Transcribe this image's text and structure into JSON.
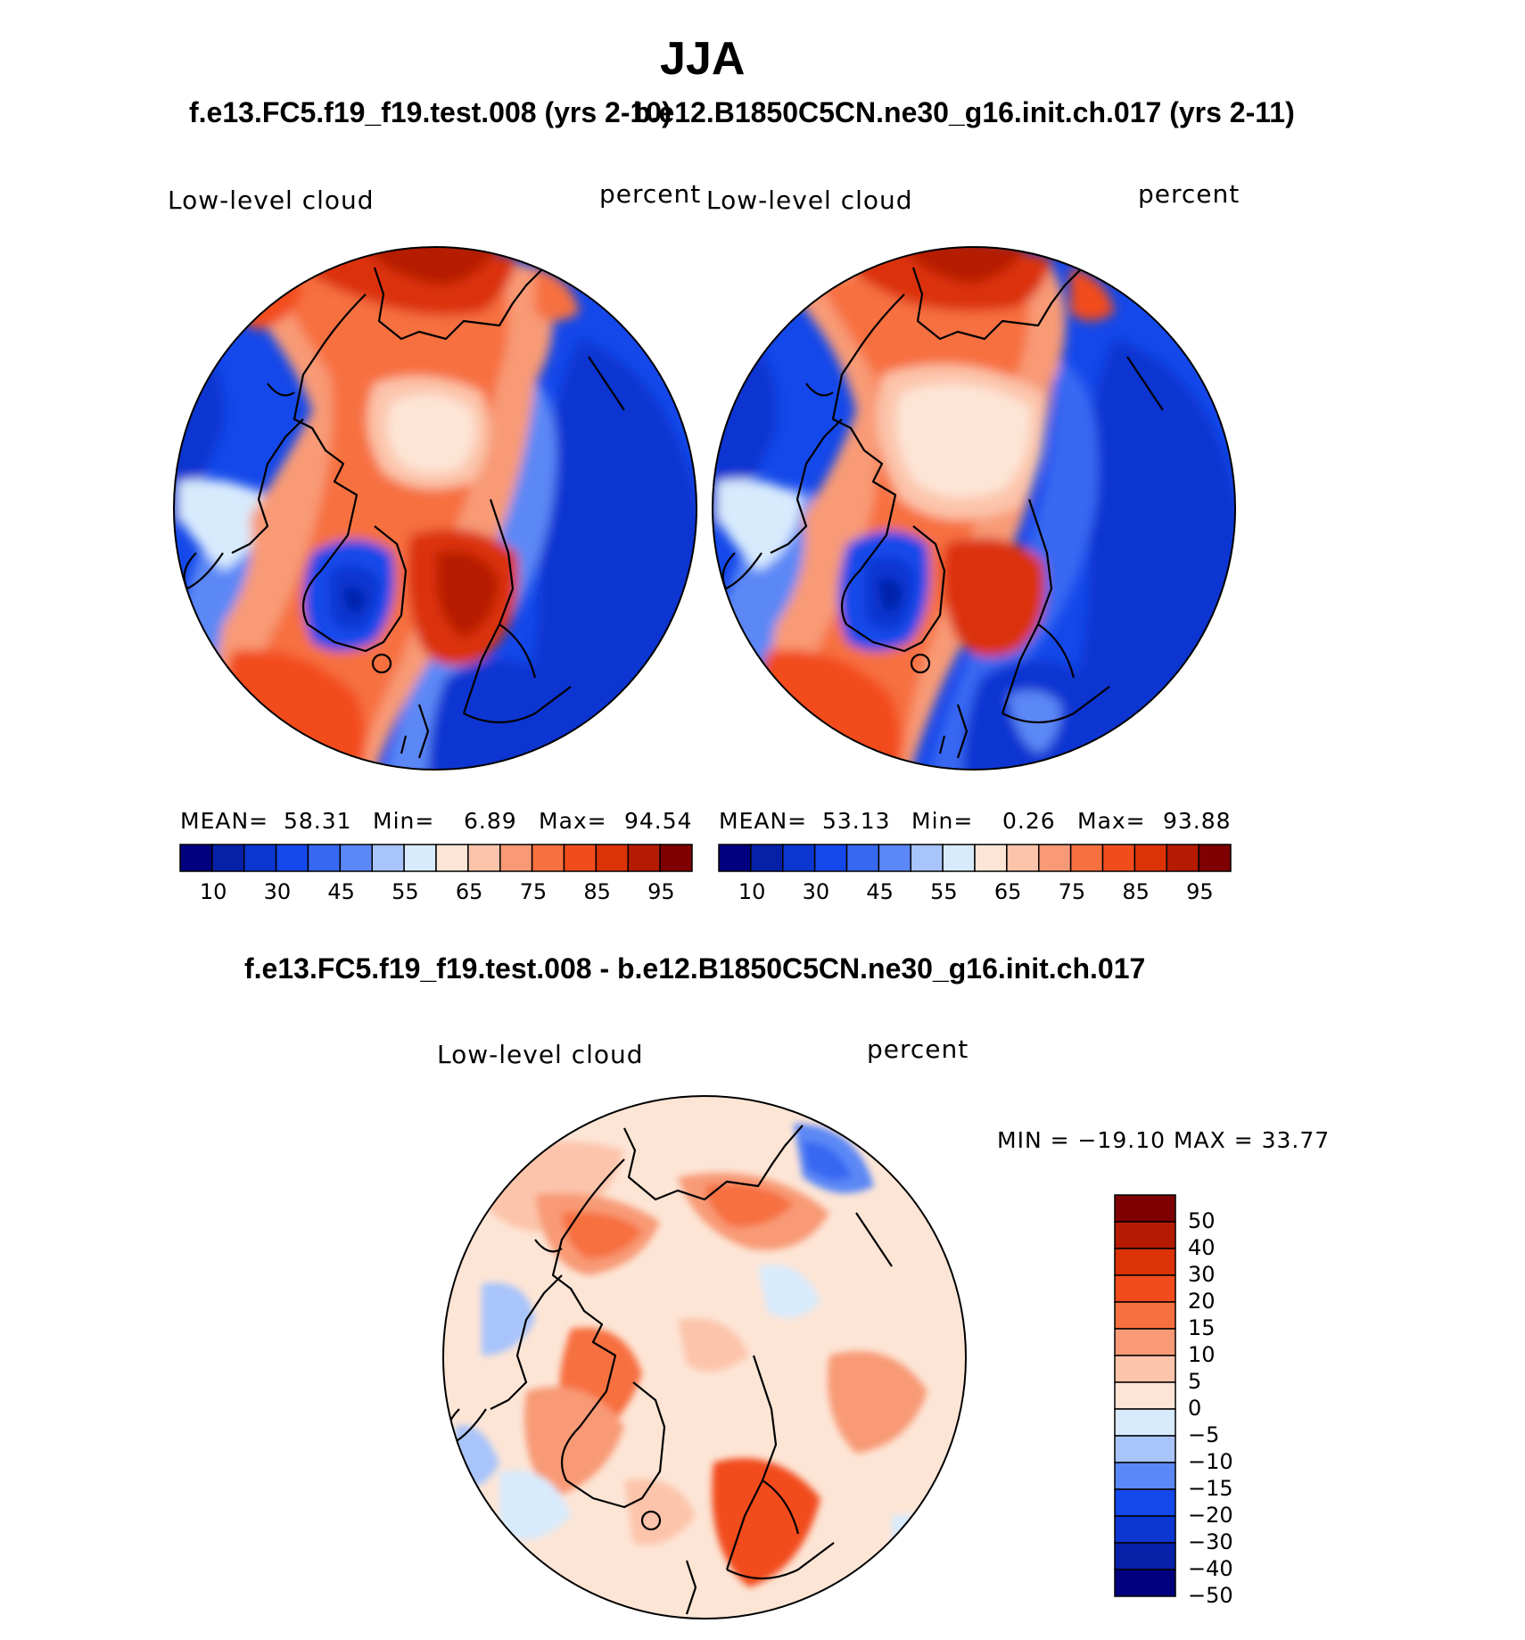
{
  "figure": {
    "title": "JJA",
    "subtitle_left": "f.e13.FC5.f19_f19.test.008 (yrs 2-10)",
    "subtitle_right": "b.e12.B1850C5CN.ne30_g16.init.ch.017 (yrs 2-11)",
    "diff_title": "f.e13.FC5.f19_f19.test.008 - b.e12.B1850C5CN.ne30_g16.init.ch.017"
  },
  "colors": {
    "sequential": [
      "#00007f",
      "#0620a8",
      "#0b36d1",
      "#1448ea",
      "#3768f2",
      "#5b88f6",
      "#a8c4fb",
      "#d8ebfd",
      "#fde5d6",
      "#fcc4aa",
      "#f89a76",
      "#f7703f",
      "#f24c1c",
      "#db3208",
      "#b51b02",
      "#7e0002"
    ],
    "diverging": [
      "#00007f",
      "#0620a8",
      "#0b36d1",
      "#1448ea",
      "#5b88f6",
      "#a8c4fb",
      "#d8ebfd",
      "#fde5d6",
      "#fcc4aa",
      "#f89a76",
      "#f7703f",
      "#f24c1c",
      "#db3208",
      "#b51b02",
      "#7e0002"
    ],
    "coast": "#000000"
  },
  "chart_data": [
    {
      "type": "heatmap",
      "title": "f.e13.FC5.f19_f19.test.008 (yrs 2-10)",
      "variable": "Low-level cloud",
      "units": "percent",
      "projection": "north polar stereographic",
      "mean_label": "MEAN=",
      "mean": "58.31",
      "min_label": "Min=",
      "min": "6.89",
      "max_label": "Max=",
      "max": "94.54",
      "contour_levels": [
        10,
        20,
        30,
        40,
        45,
        50,
        55,
        60,
        65,
        70,
        75,
        80,
        85,
        90,
        95
      ],
      "tick_labels": [
        "10",
        "30",
        "45",
        "55",
        "65",
        "75",
        "85",
        "95"
      ]
    },
    {
      "type": "heatmap",
      "title": "b.e12.B1850C5CN.ne30_g16.init.ch.017 (yrs 2-11)",
      "variable": "Low-level cloud",
      "units": "percent",
      "projection": "north polar stereographic",
      "mean_label": "MEAN=",
      "mean": "53.13",
      "min_label": "Min=",
      "min": "0.26",
      "max_label": "Max=",
      "max": "93.88",
      "contour_levels": [
        10,
        20,
        30,
        40,
        45,
        50,
        55,
        60,
        65,
        70,
        75,
        80,
        85,
        90,
        95
      ],
      "tick_labels": [
        "10",
        "30",
        "45",
        "55",
        "65",
        "75",
        "85",
        "95"
      ]
    },
    {
      "type": "heatmap",
      "title": "f.e13.FC5.f19_f19.test.008 - b.e12.B1850C5CN.ne30_g16.init.ch.017",
      "variable": "Low-level cloud",
      "units": "percent",
      "projection": "north polar stereographic",
      "minmax_label": "MIN = −19.10 MAX =   33.77",
      "min": -19.1,
      "max": 33.77,
      "contour_levels": [
        -50,
        -40,
        -30,
        -20,
        -15,
        -10,
        -5,
        0,
        5,
        10,
        15,
        20,
        30,
        40,
        50
      ],
      "tick_labels": [
        "50",
        "40",
        "30",
        "20",
        "15",
        "10",
        "5",
        "0",
        "−5",
        "−10",
        "−15",
        "−20",
        "−30",
        "−40",
        "−50"
      ]
    }
  ]
}
